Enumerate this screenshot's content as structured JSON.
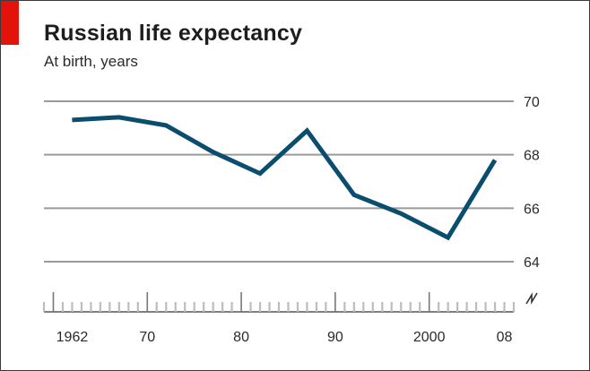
{
  "chart_data": {
    "type": "line",
    "title": "Russian life expectancy",
    "subtitle": "At birth, years",
    "xlabel": "",
    "ylabel": "",
    "x_tick_labels": [
      {
        "x": 1962,
        "label": "1962"
      },
      {
        "x": 1970,
        "label": "70"
      },
      {
        "x": 1980,
        "label": "80"
      },
      {
        "x": 1990,
        "label": "90"
      },
      {
        "x": 2000,
        "label": "2000"
      },
      {
        "x": 2008,
        "label": "08"
      }
    ],
    "y_tick_labels": [
      {
        "y": 64,
        "label": "64"
      },
      {
        "y": 66,
        "label": "66"
      },
      {
        "y": 68,
        "label": "68"
      },
      {
        "y": 70,
        "label": "70"
      }
    ],
    "xlim": [
      1959,
      2009
    ],
    "ylim": [
      64,
      70
    ],
    "axis_break": true,
    "grid": true,
    "series": [
      {
        "x": [
          1962,
          1967,
          1972,
          1977,
          1982,
          1987,
          1992,
          1997,
          2002,
          2007
        ],
        "values": [
          69.3,
          69.4,
          69.1,
          68.1,
          67.3,
          68.9,
          66.5,
          65.8,
          64.9,
          67.8
        ]
      }
    ],
    "colors": {
      "line": "#0b4d6e",
      "accent": "#e3120b",
      "grid": "#9a9a9a",
      "tick_major": "#777777",
      "tick_minor": "#bdbdbd"
    }
  }
}
